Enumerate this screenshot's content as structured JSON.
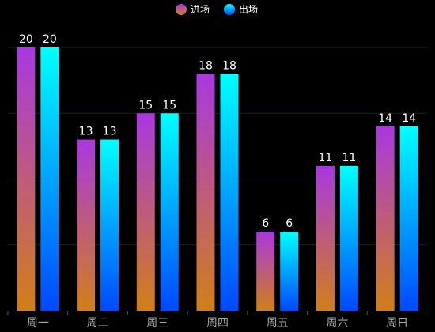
{
  "chart_data": {
    "type": "bar",
    "title": "",
    "xlabel": "",
    "ylabel": "",
    "categories": [
      "周一",
      "周二",
      "周三",
      "周四",
      "周五",
      "周六",
      "周日"
    ],
    "ylim": [
      0,
      20
    ],
    "grid": true,
    "legend_position": "top-center",
    "series": [
      {
        "name": "进场",
        "values": [
          20,
          13,
          15,
          18,
          6,
          11,
          14
        ],
        "gradient": [
          "#a938e0",
          "#d17f18"
        ]
      },
      {
        "name": "出场",
        "values": [
          20,
          13,
          15,
          18,
          6,
          11,
          14
        ],
        "gradient": [
          "#00ffff",
          "#0048ff"
        ]
      }
    ],
    "colors": {
      "background": "#000000",
      "grid": "#1c1f2b",
      "axis": "#4a4f6a",
      "value_label": "#ffffff",
      "tick_label": "#a8a8a8"
    }
  }
}
